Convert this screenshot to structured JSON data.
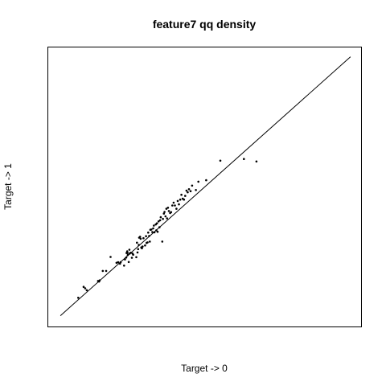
{
  "chart_data": {
    "type": "scatter",
    "title": "feature7 qq density",
    "xlabel": "Target -> 0",
    "ylabel": "Target -> 1",
    "xlim": [
      0,
      1
    ],
    "ylim": [
      0,
      1
    ],
    "grid": false,
    "reference_line": {
      "x": [
        0.04,
        0.965
      ],
      "y": [
        0.04,
        0.965
      ]
    },
    "points": [
      [
        0.097,
        0.104
      ],
      [
        0.114,
        0.143
      ],
      [
        0.119,
        0.138
      ],
      [
        0.124,
        0.131
      ],
      [
        0.16,
        0.164
      ],
      [
        0.163,
        0.162
      ],
      [
        0.165,
        0.166
      ],
      [
        0.175,
        0.2
      ],
      [
        0.186,
        0.2
      ],
      [
        0.2,
        0.25
      ],
      [
        0.219,
        0.229
      ],
      [
        0.224,
        0.231
      ],
      [
        0.23,
        0.226
      ],
      [
        0.232,
        0.231
      ],
      [
        0.243,
        0.219
      ],
      [
        0.246,
        0.241
      ],
      [
        0.25,
        0.248
      ],
      [
        0.251,
        0.264
      ],
      [
        0.253,
        0.27
      ],
      [
        0.254,
        0.264
      ],
      [
        0.255,
        0.257
      ],
      [
        0.258,
        0.232
      ],
      [
        0.26,
        0.276
      ],
      [
        0.261,
        0.262
      ],
      [
        0.264,
        0.265
      ],
      [
        0.268,
        0.247
      ],
      [
        0.27,
        0.262
      ],
      [
        0.272,
        0.258
      ],
      [
        0.282,
        0.249
      ],
      [
        0.284,
        0.301
      ],
      [
        0.286,
        0.266
      ],
      [
        0.288,
        0.278
      ],
      [
        0.29,
        0.293
      ],
      [
        0.291,
        0.319
      ],
      [
        0.294,
        0.322
      ],
      [
        0.296,
        0.315
      ],
      [
        0.298,
        0.284
      ],
      [
        0.3,
        0.281
      ],
      [
        0.302,
        0.287
      ],
      [
        0.305,
        0.317
      ],
      [
        0.31,
        0.291
      ],
      [
        0.313,
        0.324
      ],
      [
        0.315,
        0.3
      ],
      [
        0.318,
        0.302
      ],
      [
        0.32,
        0.337
      ],
      [
        0.323,
        0.325
      ],
      [
        0.325,
        0.305
      ],
      [
        0.327,
        0.347
      ],
      [
        0.33,
        0.348
      ],
      [
        0.333,
        0.339
      ],
      [
        0.336,
        0.352
      ],
      [
        0.338,
        0.362
      ],
      [
        0.34,
        0.338
      ],
      [
        0.344,
        0.366
      ],
      [
        0.346,
        0.345
      ],
      [
        0.348,
        0.37
      ],
      [
        0.35,
        0.34
      ],
      [
        0.353,
        0.377
      ],
      [
        0.356,
        0.356
      ],
      [
        0.358,
        0.381
      ],
      [
        0.36,
        0.392
      ],
      [
        0.365,
        0.305
      ],
      [
        0.367,
        0.386
      ],
      [
        0.37,
        0.405
      ],
      [
        0.372,
        0.411
      ],
      [
        0.375,
        0.395
      ],
      [
        0.378,
        0.422
      ],
      [
        0.38,
        0.388
      ],
      [
        0.383,
        0.426
      ],
      [
        0.386,
        0.414
      ],
      [
        0.39,
        0.407
      ],
      [
        0.393,
        0.41
      ],
      [
        0.397,
        0.434
      ],
      [
        0.401,
        0.444
      ],
      [
        0.405,
        0.434
      ],
      [
        0.41,
        0.422
      ],
      [
        0.414,
        0.45
      ],
      [
        0.418,
        0.438
      ],
      [
        0.422,
        0.455
      ],
      [
        0.426,
        0.472
      ],
      [
        0.43,
        0.458
      ],
      [
        0.434,
        0.455
      ],
      [
        0.438,
        0.468
      ],
      [
        0.442,
        0.487
      ],
      [
        0.446,
        0.481
      ],
      [
        0.45,
        0.492
      ],
      [
        0.455,
        0.485
      ],
      [
        0.46,
        0.505
      ],
      [
        0.472,
        0.489
      ],
      [
        0.48,
        0.519
      ],
      [
        0.505,
        0.524
      ],
      [
        0.55,
        0.594
      ],
      [
        0.625,
        0.6
      ],
      [
        0.665,
        0.591
      ]
    ]
  }
}
